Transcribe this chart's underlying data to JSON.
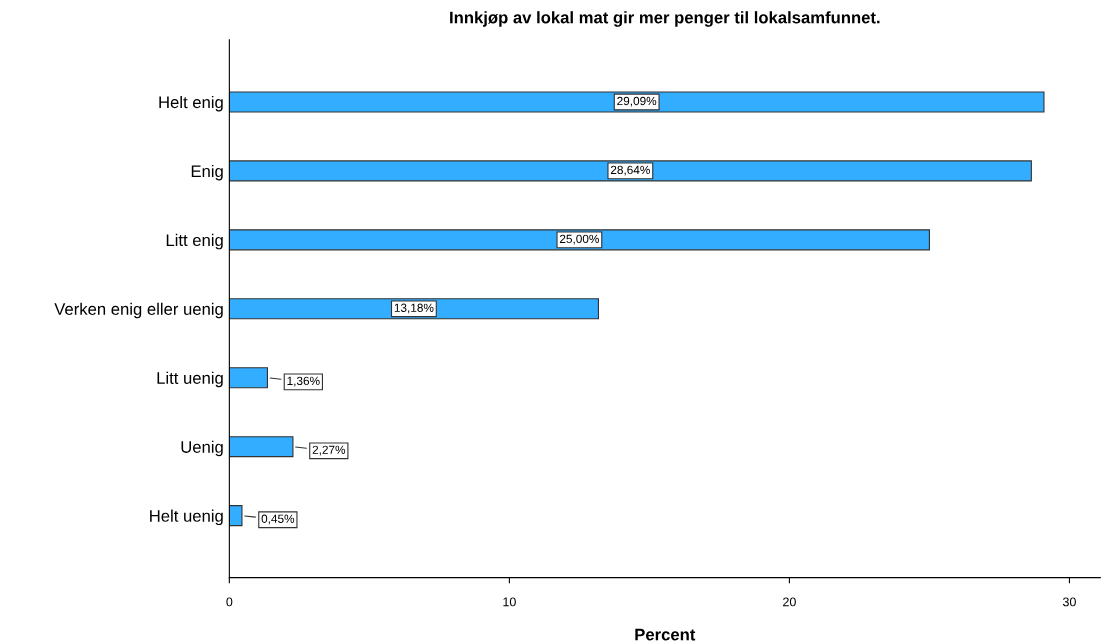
{
  "chart_data": {
    "type": "bar",
    "orientation": "horizontal",
    "title": "Innkjøp av lokal mat gir mer penger til lokalsamfunnet.",
    "xlabel": "Percent",
    "categories": [
      "Helt enig",
      "Enig",
      "Litt enig",
      "Verken enig eller uenig",
      "Litt uenig",
      "Uenig",
      "Helt uenig"
    ],
    "values": [
      29.09,
      28.64,
      25.0,
      13.18,
      1.36,
      2.27,
      0.45
    ],
    "color": "#33adff",
    "value_labels": [
      "29,09%",
      "28,64%",
      "25,00%",
      "13,18%",
      "1,36%",
      "2,27%",
      "0,45%"
    ],
    "xlim": [
      0,
      31.1
    ],
    "xticks": [
      0,
      10,
      20,
      30
    ],
    "grid": false,
    "legend": false
  }
}
